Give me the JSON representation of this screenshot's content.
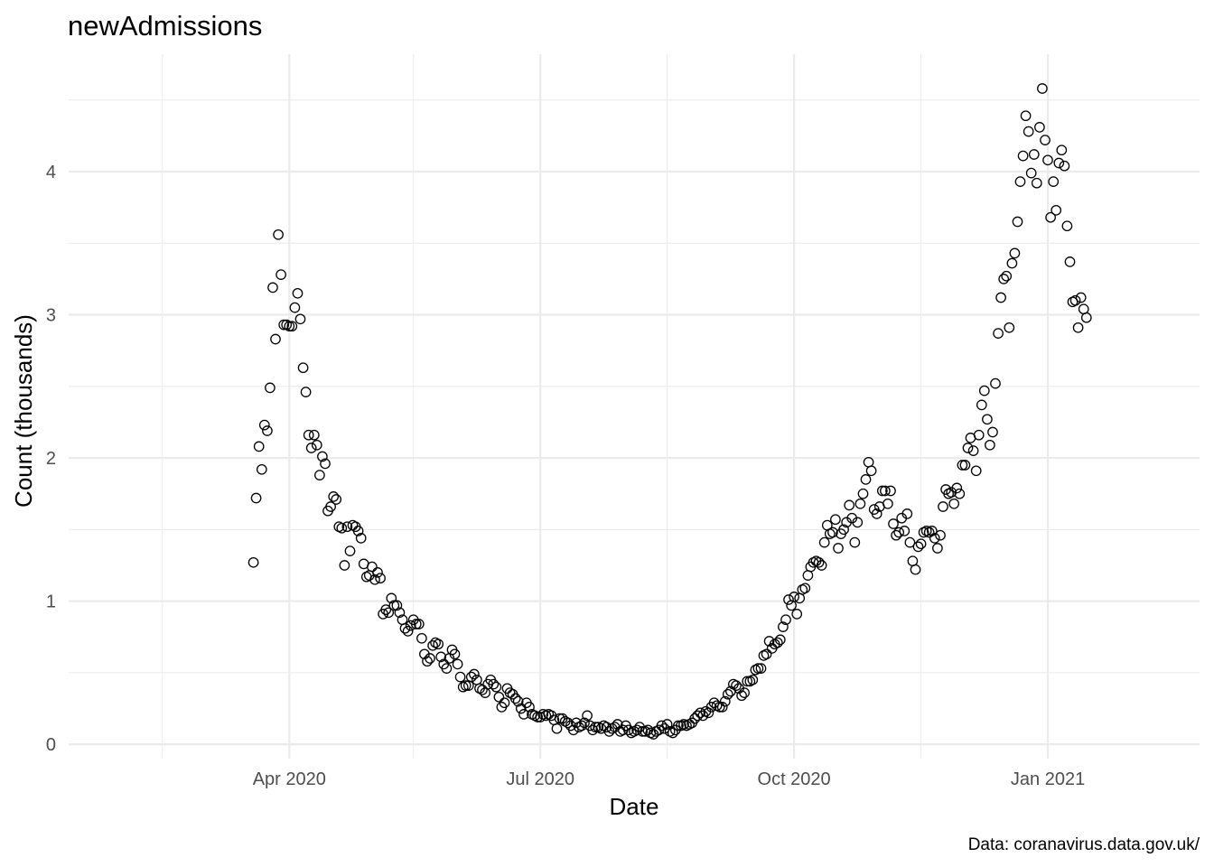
{
  "chart_data": {
    "type": "scatter",
    "title": "newAdmissions",
    "xlabel": "Date",
    "ylabel": "Count (thousands)",
    "caption": "Data: coranavirus.data.gov.uk/",
    "x_ticks": [
      {
        "date": "2020-04-01",
        "label": "Apr 2020"
      },
      {
        "date": "2020-07-01",
        "label": "Jul 2020"
      },
      {
        "date": "2020-10-01",
        "label": "Oct 2020"
      },
      {
        "date": "2021-01-01",
        "label": "Jan 2021"
      }
    ],
    "x_minor_ticks": [
      "2020-02-15",
      "2020-05-16",
      "2020-08-16",
      "2020-11-16"
    ],
    "y_ticks": [
      0,
      1,
      2,
      3,
      4
    ],
    "xlim": [
      "2020-01-12",
      "2021-02-25"
    ],
    "ylim": [
      -0.1,
      4.82
    ],
    "grid": true,
    "legend": "none",
    "marker": "open-circle",
    "series": [
      {
        "start_date": "2020-03-19",
        "values": [
          1.27,
          1.72,
          2.08,
          1.92,
          2.23,
          2.19,
          2.49,
          3.19,
          2.83,
          3.56,
          3.28,
          2.93,
          2.93,
          2.92,
          2.92,
          3.05,
          3.15,
          2.97,
          2.63,
          2.46,
          2.16,
          2.07,
          2.16,
          2.09,
          1.88,
          2.01,
          1.96,
          1.63,
          1.66,
          1.73,
          1.71,
          1.52,
          1.51,
          1.25,
          1.52,
          1.35,
          1.53,
          1.52,
          1.49,
          1.44,
          1.26,
          1.17,
          1.18,
          1.24,
          1.15,
          1.2,
          1.16,
          0.91,
          0.94,
          0.92,
          1.02,
          0.97,
          0.97,
          0.92,
          0.87,
          0.81,
          0.79,
          0.83,
          0.87,
          0.84,
          0.84,
          0.74,
          0.63,
          0.58,
          0.6,
          0.69,
          0.71,
          0.7,
          0.61,
          0.56,
          0.53,
          0.6,
          0.66,
          0.63,
          0.56,
          0.47,
          0.4,
          0.41,
          0.41,
          0.47,
          0.49,
          0.45,
          0.39,
          0.38,
          0.36,
          0.42,
          0.45,
          0.42,
          0.4,
          0.33,
          0.26,
          0.29,
          0.39,
          0.36,
          0.35,
          0.32,
          0.3,
          0.25,
          0.21,
          0.29,
          0.26,
          0.21,
          0.2,
          0.19,
          0.19,
          0.21,
          0.2,
          0.21,
          0.2,
          0.17,
          0.11,
          0.18,
          0.18,
          0.16,
          0.15,
          0.13,
          0.1,
          0.15,
          0.12,
          0.13,
          0.15,
          0.2,
          0.13,
          0.1,
          0.12,
          0.12,
          0.11,
          0.13,
          0.12,
          0.09,
          0.11,
          0.12,
          0.14,
          0.09,
          0.1,
          0.13,
          0.1,
          0.08,
          0.09,
          0.1,
          0.12,
          0.09,
          0.09,
          0.1,
          0.08,
          0.07,
          0.09,
          0.1,
          0.13,
          0.11,
          0.14,
          0.09,
          0.08,
          0.1,
          0.13,
          0.13,
          0.14,
          0.13,
          0.14,
          0.15,
          0.18,
          0.2,
          0.22,
          0.2,
          0.23,
          0.22,
          0.26,
          0.29,
          0.27,
          0.26,
          0.26,
          0.3,
          0.35,
          0.37,
          0.42,
          0.41,
          0.39,
          0.34,
          0.36,
          0.44,
          0.44,
          0.45,
          0.52,
          0.53,
          0.53,
          0.62,
          0.63,
          0.72,
          0.67,
          0.7,
          0.71,
          0.73,
          0.82,
          0.87,
          1.01,
          0.97,
          1.03,
          0.91,
          1.02,
          1.08,
          1.09,
          1.18,
          1.24,
          1.27,
          1.28,
          1.27,
          1.25,
          1.41,
          1.53,
          1.47,
          1.48,
          1.57,
          1.37,
          1.47,
          1.5,
          1.55,
          1.67,
          1.58,
          1.41,
          1.55,
          1.68,
          1.75,
          1.85,
          1.97,
          1.91,
          1.64,
          1.61,
          1.66,
          1.77,
          1.77,
          1.68,
          1.77,
          1.54,
          1.46,
          1.48,
          1.58,
          1.49,
          1.61,
          1.41,
          1.28,
          1.22,
          1.38,
          1.4,
          1.48,
          1.49,
          1.48,
          1.49,
          1.44,
          1.37,
          1.46,
          1.66,
          1.78,
          1.75,
          1.76,
          1.68,
          1.79,
          1.75,
          1.95,
          1.95,
          2.07,
          2.14,
          2.05,
          1.91,
          2.16,
          2.37,
          2.47,
          2.27,
          2.09,
          2.18,
          2.52,
          2.87,
          3.12,
          3.25,
          3.27,
          2.91,
          3.36,
          3.43,
          3.65,
          3.93,
          4.11,
          4.39,
          4.28,
          3.99,
          4.12,
          3.92,
          4.31,
          4.58,
          4.22,
          4.08,
          3.68,
          3.93,
          3.73,
          4.06,
          4.15,
          4.04,
          3.62,
          3.37,
          3.09,
          3.1,
          2.91,
          3.12,
          3.04,
          2.98
        ]
      }
    ]
  }
}
